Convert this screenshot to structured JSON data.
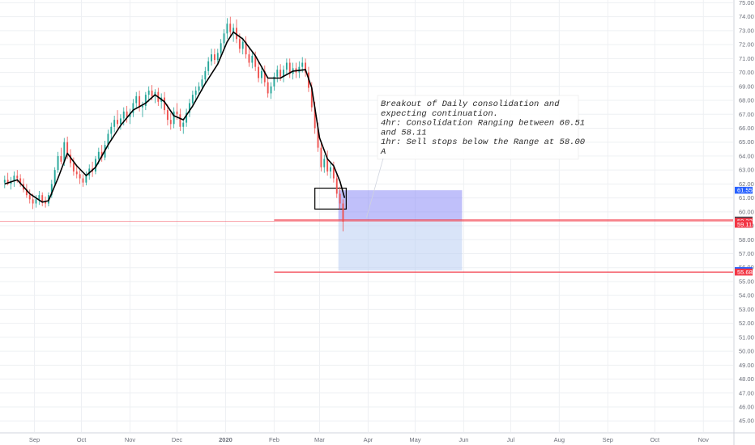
{
  "chart_data": {
    "type": "candlestick",
    "y_axis_side": "right",
    "ylim": [
      44.2,
      75.2
    ],
    "y_ticks": [
      "45.00",
      "46.00",
      "47.00",
      "48.00",
      "49.00",
      "50.00",
      "51.00",
      "52.00",
      "53.00",
      "54.00",
      "55.00",
      "56.00",
      "57.00",
      "58.00",
      "59.00",
      "60.00",
      "61.00",
      "62.00",
      "63.00",
      "64.00",
      "65.00",
      "66.00",
      "67.00",
      "68.00",
      "69.00",
      "70.00",
      "71.00",
      "72.00",
      "73.00",
      "74.00",
      "75.00"
    ],
    "x_ticks": [
      {
        "label": "Sep",
        "date": "2019-09-01"
      },
      {
        "label": "Oct",
        "date": "2019-10-01"
      },
      {
        "label": "Nov",
        "date": "2019-11-01"
      },
      {
        "label": "Dec",
        "date": "2019-12-01"
      },
      {
        "label": "2020",
        "date": "2020-01-01"
      },
      {
        "label": "Feb",
        "date": "2020-02-01"
      },
      {
        "label": "Mar",
        "date": "2020-03-01"
      },
      {
        "label": "Apr",
        "date": "2020-04-01"
      },
      {
        "label": "May",
        "date": "2020-05-01"
      },
      {
        "label": "Jun",
        "date": "2020-06-01"
      },
      {
        "label": "Jul",
        "date": "2020-07-01"
      },
      {
        "label": "Aug",
        "date": "2020-08-01"
      },
      {
        "label": "Sep",
        "date": "2020-09-01"
      },
      {
        "label": "Oct",
        "date": "2020-10-01"
      },
      {
        "label": "Nov",
        "date": "2020-11-01"
      }
    ],
    "x_range": [
      "2019-08-10",
      "2020-11-20"
    ],
    "ohlc": [
      [
        "2019-08-13",
        62.1,
        62.6,
        61.7,
        62.3
      ],
      [
        "2019-08-15",
        62.3,
        62.8,
        61.9,
        62.0
      ],
      [
        "2019-08-17",
        62.0,
        62.5,
        61.6,
        62.2
      ],
      [
        "2019-08-19",
        62.2,
        62.9,
        61.8,
        62.6
      ],
      [
        "2019-08-21",
        62.6,
        63.0,
        62.1,
        62.4
      ],
      [
        "2019-08-23",
        62.4,
        62.7,
        61.8,
        62.0
      ],
      [
        "2019-08-25",
        62.0,
        62.4,
        61.4,
        61.6
      ],
      [
        "2019-08-27",
        61.6,
        62.0,
        61.0,
        61.2
      ],
      [
        "2019-08-29",
        61.2,
        61.6,
        60.6,
        60.9
      ],
      [
        "2019-08-31",
        60.9,
        61.3,
        60.2,
        60.6
      ],
      [
        "2019-09-02",
        60.6,
        61.2,
        60.3,
        60.9
      ],
      [
        "2019-09-04",
        60.9,
        61.5,
        60.5,
        61.2
      ],
      [
        "2019-09-06",
        61.2,
        61.4,
        60.4,
        60.7
      ],
      [
        "2019-09-08",
        60.7,
        61.1,
        60.3,
        60.6
      ],
      [
        "2019-09-10",
        60.6,
        61.4,
        60.4,
        61.2
      ],
      [
        "2019-09-12",
        61.2,
        62.3,
        61.0,
        62.0
      ],
      [
        "2019-09-14",
        62.0,
        63.2,
        61.8,
        63.0
      ],
      [
        "2019-09-16",
        63.0,
        64.3,
        62.8,
        64.0
      ],
      [
        "2019-09-18",
        64.0,
        64.6,
        63.4,
        63.6
      ],
      [
        "2019-09-20",
        63.6,
        65.3,
        63.3,
        65.0
      ],
      [
        "2019-09-22",
        65.0,
        65.4,
        63.8,
        64.1
      ],
      [
        "2019-09-24",
        64.1,
        64.5,
        63.2,
        63.5
      ],
      [
        "2019-09-26",
        63.5,
        63.9,
        62.6,
        62.9
      ],
      [
        "2019-09-28",
        62.9,
        63.3,
        62.4,
        62.7
      ],
      [
        "2019-09-30",
        62.7,
        63.0,
        62.0,
        62.4
      ],
      [
        "2019-10-02",
        62.4,
        62.7,
        61.8,
        62.1
      ],
      [
        "2019-10-04",
        62.1,
        62.9,
        61.9,
        62.6
      ],
      [
        "2019-10-06",
        62.6,
        63.4,
        62.3,
        63.1
      ],
      [
        "2019-10-08",
        63.1,
        63.6,
        62.5,
        62.9
      ],
      [
        "2019-10-10",
        62.9,
        64.0,
        62.7,
        63.8
      ],
      [
        "2019-10-12",
        63.8,
        64.6,
        63.4,
        64.3
      ],
      [
        "2019-10-14",
        64.3,
        64.8,
        63.6,
        63.9
      ],
      [
        "2019-10-16",
        63.9,
        65.1,
        63.7,
        64.8
      ],
      [
        "2019-10-18",
        64.8,
        65.9,
        64.5,
        65.6
      ],
      [
        "2019-10-20",
        65.6,
        66.4,
        65.2,
        66.1
      ],
      [
        "2019-10-22",
        66.1,
        66.9,
        65.7,
        66.6
      ],
      [
        "2019-10-24",
        66.6,
        67.3,
        66.0,
        66.3
      ],
      [
        "2019-10-26",
        66.3,
        67.0,
        65.9,
        66.7
      ],
      [
        "2019-10-28",
        66.7,
        67.5,
        66.2,
        67.2
      ],
      [
        "2019-10-30",
        67.2,
        67.6,
        66.4,
        66.8
      ],
      [
        "2019-11-01",
        66.8,
        67.4,
        66.3,
        67.1
      ],
      [
        "2019-11-03",
        67.1,
        68.1,
        66.8,
        67.8
      ],
      [
        "2019-11-05",
        67.8,
        68.6,
        67.4,
        68.3
      ],
      [
        "2019-11-07",
        68.3,
        68.7,
        67.2,
        67.5
      ],
      [
        "2019-11-09",
        67.5,
        67.9,
        66.8,
        67.6
      ],
      [
        "2019-11-11",
        67.6,
        68.6,
        67.3,
        68.4
      ],
      [
        "2019-11-13",
        68.4,
        69.0,
        67.9,
        68.7
      ],
      [
        "2019-11-15",
        68.7,
        69.1,
        68.0,
        68.3
      ],
      [
        "2019-11-17",
        68.3,
        68.8,
        67.8,
        68.6
      ],
      [
        "2019-11-19",
        68.6,
        68.9,
        67.6,
        67.9
      ],
      [
        "2019-11-21",
        67.9,
        68.5,
        67.4,
        68.2
      ],
      [
        "2019-11-23",
        68.2,
        68.6,
        67.0,
        67.3
      ],
      [
        "2019-11-25",
        67.3,
        67.7,
        66.2,
        66.6
      ],
      [
        "2019-11-27",
        66.6,
        67.1,
        65.9,
        66.3
      ],
      [
        "2019-11-29",
        66.3,
        67.5,
        66.0,
        67.2
      ],
      [
        "2019-12-01",
        67.2,
        67.8,
        66.6,
        67.0
      ],
      [
        "2019-12-03",
        67.0,
        67.4,
        65.8,
        66.1
      ],
      [
        "2019-12-05",
        66.1,
        66.7,
        65.6,
        66.4
      ],
      [
        "2019-12-07",
        66.4,
        67.4,
        66.1,
        67.1
      ],
      [
        "2019-12-09",
        67.1,
        68.1,
        66.8,
        67.8
      ],
      [
        "2019-12-11",
        67.8,
        68.7,
        67.5,
        68.4
      ],
      [
        "2019-12-13",
        68.4,
        69.0,
        67.9,
        68.7
      ],
      [
        "2019-12-15",
        68.7,
        69.3,
        68.3,
        69.0
      ],
      [
        "2019-12-17",
        69.0,
        69.8,
        68.7,
        69.5
      ],
      [
        "2019-12-19",
        69.5,
        70.4,
        69.2,
        70.1
      ],
      [
        "2019-12-21",
        70.1,
        71.1,
        69.8,
        70.8
      ],
      [
        "2019-12-23",
        70.8,
        71.7,
        70.5,
        71.3
      ],
      [
        "2019-12-25",
        71.3,
        71.7,
        70.6,
        70.9
      ],
      [
        "2019-12-27",
        70.9,
        71.7,
        70.6,
        71.4
      ],
      [
        "2019-12-29",
        71.4,
        72.4,
        71.1,
        72.1
      ],
      [
        "2019-12-31",
        72.1,
        73.1,
        71.8,
        72.8
      ],
      [
        "2020-01-02",
        72.8,
        73.9,
        72.4,
        73.5
      ],
      [
        "2020-01-04",
        73.5,
        74.0,
        72.6,
        72.9
      ],
      [
        "2020-01-06",
        72.9,
        73.5,
        72.2,
        73.2
      ],
      [
        "2020-01-08",
        73.2,
        73.8,
        72.1,
        72.4
      ],
      [
        "2020-01-10",
        72.4,
        72.8,
        71.4,
        71.7
      ],
      [
        "2020-01-12",
        71.7,
        72.5,
        71.3,
        72.2
      ],
      [
        "2020-01-14",
        72.2,
        72.6,
        71.0,
        71.3
      ],
      [
        "2020-01-16",
        71.3,
        71.7,
        70.4,
        70.7
      ],
      [
        "2020-01-18",
        70.7,
        71.5,
        70.3,
        71.2
      ],
      [
        "2020-01-20",
        71.2,
        71.5,
        70.1,
        70.4
      ],
      [
        "2020-01-22",
        70.4,
        70.8,
        69.3,
        69.6
      ],
      [
        "2020-01-24",
        69.6,
        70.4,
        69.2,
        70.1
      ],
      [
        "2020-01-26",
        70.1,
        70.5,
        69.0,
        69.3
      ],
      [
        "2020-01-28",
        69.3,
        69.7,
        68.2,
        68.5
      ],
      [
        "2020-01-30",
        68.5,
        69.3,
        68.1,
        69.0
      ],
      [
        "2020-02-01",
        69.0,
        70.0,
        68.7,
        69.7
      ],
      [
        "2020-02-03",
        69.7,
        70.5,
        69.3,
        70.2
      ],
      [
        "2020-02-05",
        70.2,
        70.6,
        69.4,
        69.7
      ],
      [
        "2020-02-07",
        69.7,
        70.5,
        69.3,
        70.2
      ],
      [
        "2020-02-09",
        70.2,
        71.0,
        69.8,
        70.7
      ],
      [
        "2020-02-11",
        70.7,
        71.0,
        69.6,
        69.9
      ],
      [
        "2020-02-13",
        69.9,
        70.7,
        69.5,
        70.3
      ],
      [
        "2020-02-15",
        70.3,
        70.7,
        69.6,
        70.0
      ],
      [
        "2020-02-17",
        70.0,
        70.8,
        69.6,
        70.4
      ],
      [
        "2020-02-19",
        70.4,
        71.1,
        70.0,
        70.7
      ],
      [
        "2020-02-21",
        70.7,
        71.0,
        69.7,
        70.0
      ],
      [
        "2020-02-23",
        70.0,
        70.4,
        68.6,
        68.9
      ],
      [
        "2020-02-25",
        68.9,
        69.3,
        67.2,
        67.5
      ],
      [
        "2020-02-27",
        67.5,
        67.9,
        65.6,
        66.0
      ],
      [
        "2020-02-29",
        66.0,
        66.4,
        64.3,
        64.6
      ],
      [
        "2020-03-02",
        64.6,
        65.0,
        62.9,
        63.2
      ],
      [
        "2020-03-04",
        63.2,
        64.1,
        62.8,
        63.8
      ],
      [
        "2020-03-06",
        63.8,
        64.4,
        62.6,
        62.9
      ],
      [
        "2020-03-08",
        62.9,
        63.6,
        62.4,
        63.2
      ],
      [
        "2020-03-10",
        63.2,
        63.6,
        62.1,
        62.4
      ],
      [
        "2020-03-12",
        62.4,
        62.8,
        61.0,
        61.3
      ],
      [
        "2020-03-14",
        61.3,
        61.8,
        60.2,
        60.6
      ],
      [
        "2020-03-16",
        60.6,
        60.9,
        58.6,
        59.3
      ]
    ],
    "ma_line": [
      [
        "2019-08-13",
        62.0
      ],
      [
        "2019-08-21",
        62.3
      ],
      [
        "2019-08-29",
        61.3
      ],
      [
        "2019-09-06",
        60.7
      ],
      [
        "2019-09-10",
        60.8
      ],
      [
        "2019-09-16",
        62.4
      ],
      [
        "2019-09-22",
        64.2
      ],
      [
        "2019-09-28",
        63.3
      ],
      [
        "2019-10-04",
        62.6
      ],
      [
        "2019-10-10",
        63.2
      ],
      [
        "2019-10-18",
        64.8
      ],
      [
        "2019-10-26",
        66.2
      ],
      [
        "2019-11-03",
        67.3
      ],
      [
        "2019-11-11",
        67.8
      ],
      [
        "2019-11-17",
        68.4
      ],
      [
        "2019-11-23",
        67.9
      ],
      [
        "2019-11-29",
        66.9
      ],
      [
        "2019-12-05",
        66.6
      ],
      [
        "2019-12-11",
        67.6
      ],
      [
        "2019-12-19",
        69.2
      ],
      [
        "2019-12-27",
        70.6
      ],
      [
        "2020-01-02",
        72.2
      ],
      [
        "2020-01-06",
        72.9
      ],
      [
        "2020-01-12",
        72.4
      ],
      [
        "2020-01-20",
        71.2
      ],
      [
        "2020-01-28",
        69.6
      ],
      [
        "2020-02-05",
        69.6
      ],
      [
        "2020-02-13",
        70.1
      ],
      [
        "2020-02-21",
        70.2
      ],
      [
        "2020-02-25",
        68.9
      ],
      [
        "2020-03-01",
        65.3
      ],
      [
        "2020-03-06",
        63.8
      ],
      [
        "2020-03-10",
        63.3
      ],
      [
        "2020-03-14",
        62.2
      ],
      [
        "2020-03-17",
        61.0
      ]
    ],
    "horizontal_lines": [
      {
        "value": 59.41,
        "from": "2020-02-01",
        "to": "2020-11-20"
      },
      {
        "value": 55.68,
        "from": "2020-02-01",
        "to": "2020-11-20"
      }
    ],
    "rectangles": [
      {
        "from": "2020-03-13",
        "to": "2020-05-31",
        "top": 61.55,
        "bottom": 59.41,
        "fill": "#8c8cf5"
      },
      {
        "from": "2020-03-13",
        "to": "2020-05-31",
        "top": 59.41,
        "bottom": 55.79,
        "fill": "#b9cdf3"
      },
      {
        "from": "2020-02-27",
        "to": "2020-03-18",
        "top": 61.7,
        "bottom": 60.2,
        "fill": "none"
      }
    ],
    "annotation": {
      "lines": [
        "Breakout of  Daily consolidation and",
        "expecting continuation.",
        "4hr: Consolidation Ranging between 60.51",
        "and 58.11",
        "1hr: Sell stops below the Range at 58.00",
        "A"
      ],
      "anchor_date": "2020-03-31",
      "anchor_value": 59.6
    },
    "price_labels": [
      {
        "value": 61.55,
        "text": "61.55",
        "color": "#2962ff"
      },
      {
        "value": 59.41,
        "text": "59.41",
        "color": "#434651"
      },
      {
        "value": 59.32,
        "text": "59.32",
        "color": "#f23645"
      },
      {
        "value": 59.11,
        "text": "59.11",
        "color": "#f23645"
      },
      {
        "value": 55.79,
        "text": "55.79",
        "color": "#2962ff"
      },
      {
        "value": 55.68,
        "text": "55.68",
        "color": "#f23645"
      }
    ],
    "colors": {
      "up": "#26a69a",
      "down": "#ef5350",
      "ma": "#000000",
      "hline": "#f23645",
      "grid": "#eef0f3"
    }
  }
}
